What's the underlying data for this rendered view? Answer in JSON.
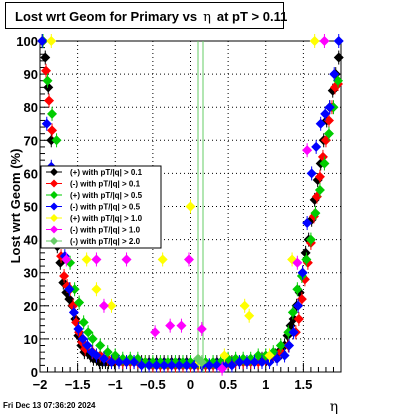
{
  "title": {
    "prefix": "Lost wrt Geom for Primary vs",
    "symbol": "η",
    "suffix": "at pT > 0.11"
  },
  "timestamp": "Fri Dec 13 07:36:20 2024",
  "colors": {
    "black": "#000000",
    "red": "#ff0000",
    "green": "#00cc00",
    "blue": "#0000ff",
    "yellow": "#ffff00",
    "magenta": "#ff00ff",
    "lightgreen": "#66cc66"
  },
  "chart_data": {
    "type": "scatter",
    "xlabel": "η",
    "ylabel": "Lost wrt Geom (%)",
    "xlim": [
      -2,
      2
    ],
    "ylim": [
      0,
      100
    ],
    "xticks": [
      -2,
      -1.5,
      -1,
      -0.5,
      0,
      0.5,
      1,
      1.5
    ],
    "yticks": [
      0,
      10,
      20,
      30,
      40,
      50,
      60,
      70,
      80,
      90,
      100
    ],
    "grid": true,
    "legend_position": "left-middle",
    "series": [
      {
        "name": "(+) with pT/|q| > 0.1",
        "color": "#000000",
        "x": [
          -1.97,
          -1.93,
          -1.89,
          -1.85,
          -1.81,
          -1.77,
          -1.73,
          -1.69,
          -1.65,
          -1.61,
          -1.57,
          -1.53,
          -1.49,
          -1.45,
          -1.41,
          -1.37,
          -1.33,
          -1.29,
          -1.25,
          -1.21,
          -1.17,
          -1.13,
          -1.09,
          -1.05,
          -1.01,
          -0.95,
          -0.85,
          -0.75,
          -0.65,
          -0.55,
          -0.45,
          -0.35,
          -0.25,
          -0.15,
          -0.05,
          0.05,
          0.15,
          0.25,
          0.35,
          0.45,
          0.55,
          0.65,
          0.75,
          0.85,
          0.95,
          1.01,
          1.05,
          1.09,
          1.13,
          1.17,
          1.21,
          1.25,
          1.29,
          1.33,
          1.37,
          1.41,
          1.45,
          1.49,
          1.53,
          1.57,
          1.61,
          1.65,
          1.69,
          1.73,
          1.77,
          1.81,
          1.85,
          1.89,
          1.93,
          1.97
        ],
        "y": [
          100,
          95,
          86,
          70,
          50,
          38,
          33,
          27,
          24,
          22,
          20,
          16,
          11,
          8,
          6,
          6,
          5,
          4,
          4,
          3,
          3,
          3,
          3,
          3,
          3,
          3,
          3,
          3,
          3,
          3,
          3,
          3,
          3,
          3,
          3,
          2,
          2,
          2,
          3,
          3,
          3,
          3,
          3,
          3,
          4,
          4,
          4,
          5,
          5,
          6,
          6,
          8,
          11,
          14,
          16,
          20,
          24,
          30,
          36,
          40,
          46,
          52,
          58,
          63,
          70,
          76,
          80,
          85,
          90,
          95
        ]
      },
      {
        "name": "(-) with pT/|q| > 0.1",
        "color": "#ff0000",
        "x": [
          -1.96,
          -1.92,
          -1.88,
          -1.84,
          -1.8,
          -1.76,
          -1.72,
          -1.68,
          -1.64,
          -1.6,
          -1.56,
          -1.52,
          -1.48,
          -1.44,
          -1.4,
          -1.3,
          -1.2,
          -1.1,
          -1.0,
          -0.9,
          -0.8,
          -0.7,
          -0.6,
          -0.5,
          -0.4,
          -0.3,
          -0.2,
          -0.1,
          0.0,
          0.1,
          0.2,
          0.3,
          0.4,
          0.5,
          0.6,
          0.7,
          0.8,
          0.9,
          1.0,
          1.1,
          1.2,
          1.3,
          1.4,
          1.44,
          1.48,
          1.52,
          1.56,
          1.6,
          1.64,
          1.68,
          1.72,
          1.76,
          1.8,
          1.84,
          1.88,
          1.92,
          1.96
        ],
        "y": [
          100,
          91,
          82,
          73,
          60,
          45,
          35,
          29,
          26,
          25,
          20,
          15,
          12,
          9,
          7,
          6,
          5,
          4,
          4,
          3,
          3,
          3,
          3,
          2,
          2,
          2,
          2,
          2,
          2,
          2,
          2,
          2,
          2,
          3,
          3,
          3,
          3,
          3,
          4,
          5,
          6,
          8,
          12,
          16,
          22,
          28,
          33,
          39,
          47,
          53,
          59,
          65,
          70,
          76,
          80,
          86,
          87
        ]
      },
      {
        "name": "(+) with pT/|q| > 0.5",
        "color": "#00cc00",
        "x": [
          -1.96,
          -1.9,
          -1.84,
          -1.78,
          -1.72,
          -1.66,
          -1.6,
          -1.54,
          -1.48,
          -1.42,
          -1.36,
          -1.3,
          -1.2,
          -1.1,
          -1.0,
          -0.9,
          -0.8,
          -0.7,
          -0.6,
          -0.5,
          -0.4,
          -0.3,
          -0.2,
          -0.1,
          0.0,
          0.1,
          0.2,
          0.3,
          0.4,
          0.5,
          0.6,
          0.7,
          0.8,
          0.9,
          1.0,
          1.1,
          1.2,
          1.3,
          1.36,
          1.42,
          1.48,
          1.54,
          1.6,
          1.66,
          1.72,
          1.78,
          1.84,
          1.9,
          1.96
        ],
        "y": [
          100,
          88,
          78,
          70,
          55,
          40,
          33,
          25,
          21,
          15,
          12,
          10,
          8,
          6,
          5,
          4,
          4,
          4,
          3,
          3,
          3,
          3,
          3,
          3,
          3,
          3,
          3,
          3,
          3,
          4,
          4,
          4,
          4,
          5,
          5,
          6,
          8,
          12,
          18,
          25,
          29,
          34,
          40,
          48,
          55,
          63,
          72,
          80,
          88
        ]
      },
      {
        "name": "(-) with pT/|q| > 0.5",
        "color": "#0000ff",
        "x": [
          -1.97,
          -1.91,
          -1.85,
          -1.79,
          -1.73,
          -1.67,
          -1.61,
          -1.55,
          -1.49,
          -1.43,
          -1.37,
          -1.31,
          -1.25,
          -1.15,
          -1.05,
          -0.95,
          -0.85,
          -0.75,
          -0.65,
          -0.55,
          -0.45,
          -0.35,
          -0.25,
          -0.15,
          -0.05,
          0.05,
          0.15,
          0.25,
          0.35,
          0.45,
          0.55,
          0.65,
          0.75,
          0.85,
          0.95,
          1.05,
          1.15,
          1.25,
          1.31,
          1.37,
          1.43,
          1.49,
          1.55,
          1.61,
          1.67,
          1.73,
          1.79,
          1.85,
          1.91,
          1.97
        ],
        "y": [
          100,
          75,
          62,
          55,
          45,
          35,
          25,
          18,
          13,
          10,
          8,
          6,
          5,
          4,
          3,
          3,
          3,
          3,
          2,
          2,
          2,
          2,
          2,
          2,
          2,
          2,
          2,
          2,
          2,
          2,
          2,
          3,
          3,
          3,
          3,
          3,
          4,
          5,
          8,
          12,
          20,
          30,
          45,
          60,
          68,
          75,
          78,
          80,
          90,
          100
        ]
      },
      {
        "name": "(+) with pT/|q| > 1.0",
        "color": "#ffff00",
        "x": [
          -1.85,
          -1.38,
          -1.25,
          -1.05,
          -0.37,
          0.0,
          0.12,
          0.45,
          0.72,
          0.78,
          1.05,
          1.35,
          1.65
        ],
        "y": [
          100,
          34,
          25,
          20,
          34,
          50,
          3,
          5,
          20,
          17,
          5,
          34,
          100
        ]
      },
      {
        "name": "(-) with pT/|q| > 1.0",
        "color": "#ff00ff",
        "x": [
          -1.65,
          -1.25,
          -1.15,
          -0.85,
          -0.47,
          -0.27,
          -0.12,
          -0.02,
          0.15,
          0.42,
          1.42,
          1.55,
          1.78
        ],
        "y": [
          34,
          34,
          20,
          34,
          12,
          14,
          14,
          34,
          13,
          1,
          33,
          67,
          100
        ]
      },
      {
        "name": "(-) with pT/|q| > 2.0",
        "color": "#66cc66",
        "x": [
          0.1,
          0.15
        ],
        "y": [
          4,
          3
        ]
      }
    ]
  }
}
